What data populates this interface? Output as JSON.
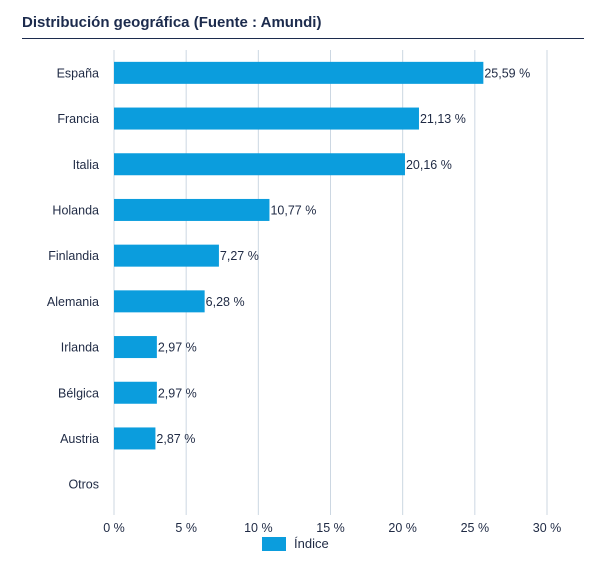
{
  "chart_data": {
    "type": "bar",
    "orientation": "horizontal",
    "title": "Distribución geográfica (Fuente : Amundi)",
    "categories": [
      "España",
      "Francia",
      "Italia",
      "Holanda",
      "Finlandia",
      "Alemania",
      "Irlanda",
      "Bélgica",
      "Austria",
      "Otros"
    ],
    "series": [
      {
        "name": "Índice",
        "values": [
          25.59,
          21.13,
          20.16,
          10.77,
          7.27,
          6.28,
          2.97,
          2.97,
          2.87,
          null
        ],
        "labels": [
          "25,59 %",
          "21,13 %",
          "20,16 %",
          "10,77 %",
          "7,27 %",
          "6,28 %",
          "2,97 %",
          "2,97 %",
          "2,87 %",
          ""
        ]
      }
    ],
    "xlim": [
      0,
      30
    ],
    "xticks": [
      0,
      5,
      10,
      15,
      20,
      25,
      30
    ],
    "xtick_labels": [
      "0 %",
      "5 %",
      "10 %",
      "15 %",
      "20 %",
      "25 %",
      "30 %"
    ],
    "grid": true,
    "legend_position": "bottom-center",
    "bar_color": "#0b9ddd",
    "grid_color": "#ccd7e2",
    "text_color": "#1f2a44"
  }
}
